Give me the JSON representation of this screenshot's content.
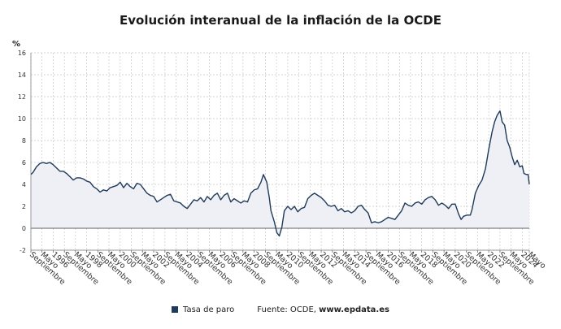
{
  "title": "Evolución interanual de la inflación de la OCDE",
  "legend": {
    "series_name": "Tasa de paro",
    "source_prefix": "Fuente: OCDE, ",
    "source_site": "www.epdata.es"
  },
  "colors": {
    "line": "#1f3a5a",
    "area": "#eef0f5",
    "grid": "#c9c9c9",
    "axis": "#555555"
  },
  "chart_data": {
    "type": "area",
    "ylabel": "%",
    "ylim": [
      -2,
      16
    ],
    "yticks": [
      -2,
      0,
      2,
      4,
      6,
      8,
      10,
      12,
      14,
      16
    ],
    "xlim": [
      1994.67,
      2024.42
    ],
    "grid": true,
    "legend_position": "bottom",
    "xtick_labels": [
      {
        "x": 1994.67,
        "label": "Septiembre"
      },
      {
        "x": 1995.33,
        "label": "Mayo"
      },
      {
        "x": 1996.0,
        "label": "1996"
      },
      {
        "x": 1996.67,
        "label": "Septiembre"
      },
      {
        "x": 1997.33,
        "label": "Mayo"
      },
      {
        "x": 1998.0,
        "label": "1998"
      },
      {
        "x": 1998.67,
        "label": "Septiembre"
      },
      {
        "x": 1999.33,
        "label": "Mayo"
      },
      {
        "x": 2000.0,
        "label": "2000"
      },
      {
        "x": 2000.67,
        "label": "Septiembre"
      },
      {
        "x": 2001.33,
        "label": "Mayo"
      },
      {
        "x": 2002.0,
        "label": "2002"
      },
      {
        "x": 2002.67,
        "label": "Septiembre"
      },
      {
        "x": 2003.33,
        "label": "Mayo"
      },
      {
        "x": 2004.0,
        "label": "2004"
      },
      {
        "x": 2004.67,
        "label": "Septiembre"
      },
      {
        "x": 2005.33,
        "label": "Mayo"
      },
      {
        "x": 2006.0,
        "label": "2006"
      },
      {
        "x": 2006.67,
        "label": "Septiembre"
      },
      {
        "x": 2007.33,
        "label": "Mayo"
      },
      {
        "x": 2008.0,
        "label": "2008"
      },
      {
        "x": 2008.67,
        "label": "Septiembre"
      },
      {
        "x": 2009.33,
        "label": "Mayo"
      },
      {
        "x": 2010.0,
        "label": "2010"
      },
      {
        "x": 2010.67,
        "label": "Septiembre"
      },
      {
        "x": 2011.33,
        "label": "Mayo"
      },
      {
        "x": 2012.0,
        "label": "2012"
      },
      {
        "x": 2012.67,
        "label": "Septiembre"
      },
      {
        "x": 2013.33,
        "label": "Mayo"
      },
      {
        "x": 2014.0,
        "label": "2014"
      },
      {
        "x": 2014.67,
        "label": "Septiembre"
      },
      {
        "x": 2015.33,
        "label": "Mayo"
      },
      {
        "x": 2016.0,
        "label": "2016"
      },
      {
        "x": 2016.67,
        "label": "Septiembre"
      },
      {
        "x": 2017.33,
        "label": "Mayo"
      },
      {
        "x": 2018.0,
        "label": "2018"
      },
      {
        "x": 2018.67,
        "label": "Septiembre"
      },
      {
        "x": 2019.33,
        "label": "Mayo"
      },
      {
        "x": 2020.0,
        "label": "2020"
      },
      {
        "x": 2020.67,
        "label": "Septiembre"
      },
      {
        "x": 2021.33,
        "label": "Mayo"
      },
      {
        "x": 2022.0,
        "label": "2022"
      },
      {
        "x": 2022.67,
        "label": "Septiembre"
      },
      {
        "x": 2023.33,
        "label": "Mayo"
      },
      {
        "x": 2024.0,
        "label": "2024"
      },
      {
        "x": 2024.42,
        "label": "Mayo"
      }
    ],
    "series": [
      {
        "name": "Tasa de paro",
        "points": [
          [
            1994.67,
            4.9
          ],
          [
            1994.8,
            5.1
          ],
          [
            1995.0,
            5.6
          ],
          [
            1995.2,
            5.9
          ],
          [
            1995.4,
            6.0
          ],
          [
            1995.6,
            5.9
          ],
          [
            1995.8,
            6.0
          ],
          [
            1996.0,
            5.8
          ],
          [
            1996.2,
            5.5
          ],
          [
            1996.4,
            5.2
          ],
          [
            1996.6,
            5.2
          ],
          [
            1996.8,
            5.0
          ],
          [
            1997.0,
            4.7
          ],
          [
            1997.2,
            4.4
          ],
          [
            1997.4,
            4.6
          ],
          [
            1997.6,
            4.6
          ],
          [
            1997.8,
            4.5
          ],
          [
            1998.0,
            4.3
          ],
          [
            1998.2,
            4.2
          ],
          [
            1998.4,
            3.8
          ],
          [
            1998.6,
            3.6
          ],
          [
            1998.8,
            3.3
          ],
          [
            1999.0,
            3.5
          ],
          [
            1999.2,
            3.4
          ],
          [
            1999.4,
            3.7
          ],
          [
            1999.6,
            3.8
          ],
          [
            1999.8,
            3.9
          ],
          [
            2000.0,
            4.2
          ],
          [
            2000.2,
            3.7
          ],
          [
            2000.4,
            4.1
          ],
          [
            2000.6,
            3.8
          ],
          [
            2000.8,
            3.6
          ],
          [
            2001.0,
            4.1
          ],
          [
            2001.2,
            4.0
          ],
          [
            2001.4,
            3.6
          ],
          [
            2001.6,
            3.2
          ],
          [
            2001.8,
            3.0
          ],
          [
            2002.0,
            2.9
          ],
          [
            2002.2,
            2.4
          ],
          [
            2002.4,
            2.6
          ],
          [
            2002.6,
            2.8
          ],
          [
            2002.8,
            3.0
          ],
          [
            2003.0,
            3.1
          ],
          [
            2003.2,
            2.5
          ],
          [
            2003.4,
            2.4
          ],
          [
            2003.6,
            2.3
          ],
          [
            2003.8,
            2.0
          ],
          [
            2004.0,
            1.8
          ],
          [
            2004.2,
            2.2
          ],
          [
            2004.4,
            2.6
          ],
          [
            2004.6,
            2.5
          ],
          [
            2004.8,
            2.8
          ],
          [
            2005.0,
            2.4
          ],
          [
            2005.2,
            2.9
          ],
          [
            2005.4,
            2.6
          ],
          [
            2005.6,
            3.0
          ],
          [
            2005.8,
            3.2
          ],
          [
            2006.0,
            2.6
          ],
          [
            2006.2,
            3.0
          ],
          [
            2006.4,
            3.2
          ],
          [
            2006.6,
            2.4
          ],
          [
            2006.8,
            2.7
          ],
          [
            2007.0,
            2.5
          ],
          [
            2007.2,
            2.3
          ],
          [
            2007.4,
            2.5
          ],
          [
            2007.6,
            2.4
          ],
          [
            2007.8,
            3.2
          ],
          [
            2008.0,
            3.5
          ],
          [
            2008.2,
            3.6
          ],
          [
            2008.4,
            4.2
          ],
          [
            2008.55,
            4.9
          ],
          [
            2008.75,
            4.2
          ],
          [
            2008.9,
            2.8
          ],
          [
            2009.0,
            1.6
          ],
          [
            2009.2,
            0.6
          ],
          [
            2009.35,
            -0.4
          ],
          [
            2009.5,
            -0.7
          ],
          [
            2009.65,
            0.1
          ],
          [
            2009.8,
            1.6
          ],
          [
            2010.0,
            2.0
          ],
          [
            2010.2,
            1.7
          ],
          [
            2010.4,
            2.0
          ],
          [
            2010.6,
            1.5
          ],
          [
            2010.8,
            1.8
          ],
          [
            2011.0,
            1.9
          ],
          [
            2011.2,
            2.7
          ],
          [
            2011.4,
            3.0
          ],
          [
            2011.6,
            3.2
          ],
          [
            2011.8,
            3.0
          ],
          [
            2012.0,
            2.8
          ],
          [
            2012.2,
            2.5
          ],
          [
            2012.4,
            2.1
          ],
          [
            2012.6,
            2.0
          ],
          [
            2012.8,
            2.1
          ],
          [
            2013.0,
            1.6
          ],
          [
            2013.2,
            1.8
          ],
          [
            2013.4,
            1.5
          ],
          [
            2013.6,
            1.6
          ],
          [
            2013.8,
            1.4
          ],
          [
            2014.0,
            1.6
          ],
          [
            2014.2,
            2.0
          ],
          [
            2014.4,
            2.1
          ],
          [
            2014.6,
            1.7
          ],
          [
            2014.8,
            1.4
          ],
          [
            2015.0,
            0.5
          ],
          [
            2015.2,
            0.6
          ],
          [
            2015.4,
            0.5
          ],
          [
            2015.6,
            0.6
          ],
          [
            2015.8,
            0.8
          ],
          [
            2016.0,
            1.0
          ],
          [
            2016.2,
            0.9
          ],
          [
            2016.4,
            0.8
          ],
          [
            2016.6,
            1.2
          ],
          [
            2016.8,
            1.6
          ],
          [
            2017.0,
            2.3
          ],
          [
            2017.2,
            2.1
          ],
          [
            2017.4,
            2.0
          ],
          [
            2017.6,
            2.3
          ],
          [
            2017.8,
            2.4
          ],
          [
            2018.0,
            2.2
          ],
          [
            2018.2,
            2.6
          ],
          [
            2018.4,
            2.8
          ],
          [
            2018.6,
            2.9
          ],
          [
            2018.8,
            2.6
          ],
          [
            2019.0,
            2.1
          ],
          [
            2019.2,
            2.3
          ],
          [
            2019.4,
            2.1
          ],
          [
            2019.6,
            1.8
          ],
          [
            2019.8,
            2.2
          ],
          [
            2020.0,
            2.2
          ],
          [
            2020.2,
            1.3
          ],
          [
            2020.35,
            0.8
          ],
          [
            2020.5,
            1.1
          ],
          [
            2020.7,
            1.2
          ],
          [
            2020.9,
            1.2
          ],
          [
            2021.0,
            1.7
          ],
          [
            2021.2,
            3.2
          ],
          [
            2021.4,
            3.9
          ],
          [
            2021.6,
            4.4
          ],
          [
            2021.8,
            5.4
          ],
          [
            2022.0,
            7.2
          ],
          [
            2022.2,
            8.8
          ],
          [
            2022.35,
            9.7
          ],
          [
            2022.5,
            10.3
          ],
          [
            2022.67,
            10.7
          ],
          [
            2022.8,
            9.7
          ],
          [
            2022.95,
            9.4
          ],
          [
            2023.1,
            8.0
          ],
          [
            2023.25,
            7.4
          ],
          [
            2023.4,
            6.5
          ],
          [
            2023.55,
            5.8
          ],
          [
            2023.7,
            6.2
          ],
          [
            2023.85,
            5.6
          ],
          [
            2024.0,
            5.7
          ],
          [
            2024.1,
            5.0
          ],
          [
            2024.25,
            4.9
          ],
          [
            2024.35,
            4.9
          ],
          [
            2024.42,
            4.0
          ]
        ]
      }
    ]
  }
}
